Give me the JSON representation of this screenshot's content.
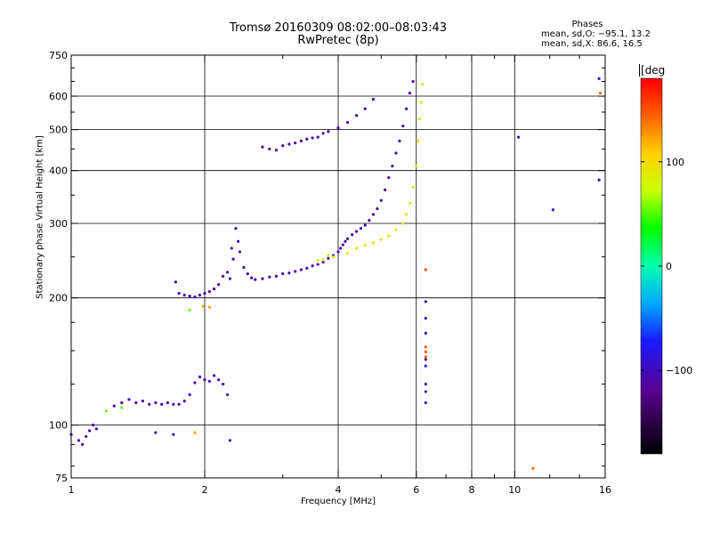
{
  "title": "Tromsø 20160309 08:02:00–08:03:43",
  "subtitle": "RwPretec (8p)",
  "phase_info": {
    "header": "Phases",
    "o_line": "mean, sd,O: −95.1, 13.2",
    "x_line": "mean, sd,X:  86.6, 16.5"
  },
  "colorbar": {
    "unit": "[deg",
    "range": [
      -180,
      180
    ],
    "ticks": [
      {
        "value": 100,
        "label": "100"
      },
      {
        "value": 0,
        "label": "0"
      },
      {
        "value": -100,
        "label": "−100"
      }
    ]
  },
  "chart_data": {
    "type": "scatter",
    "xlabel": "Frequency [MHz]",
    "ylabel": "Stationary phase Virtual Height [km]",
    "x_scale": "log",
    "y_scale": "log",
    "xlim": [
      1,
      16
    ],
    "ylim": [
      75,
      750
    ],
    "x_ticks": [
      {
        "value": 1,
        "label": "1"
      },
      {
        "value": 2,
        "label": "2"
      },
      {
        "value": 4,
        "label": "4"
      },
      {
        "value": 6,
        "label": "6"
      },
      {
        "value": 8,
        "label": "8"
      },
      {
        "value": 10,
        "label": "10"
      },
      {
        "value": 16,
        "label": "16"
      }
    ],
    "y_ticks": [
      {
        "value": 75,
        "label": "75"
      },
      {
        "value": 100,
        "label": "100"
      },
      {
        "value": 200,
        "label": "200"
      },
      {
        "value": 300,
        "label": "300"
      },
      {
        "value": 400,
        "label": "400"
      },
      {
        "value": 500,
        "label": "500"
      },
      {
        "value": 600,
        "label": "600"
      },
      {
        "value": 750,
        "label": "750"
      }
    ],
    "grid_x": [
      2,
      4,
      6,
      8,
      10
    ],
    "grid_y": [
      100,
      200,
      300,
      400,
      500,
      600
    ],
    "traces": [
      {
        "phase": -110,
        "points": [
          [
            1.0,
            95
          ],
          [
            1.04,
            92
          ],
          [
            1.06,
            90
          ],
          [
            1.08,
            94
          ],
          [
            1.1,
            97
          ],
          [
            1.12,
            100
          ],
          [
            1.14,
            98
          ]
        ]
      },
      {
        "phase": -105,
        "points": [
          [
            1.25,
            111
          ],
          [
            1.3,
            113
          ],
          [
            1.35,
            115
          ],
          [
            1.4,
            113
          ],
          [
            1.45,
            114
          ],
          [
            1.5,
            112
          ],
          [
            1.55,
            113
          ],
          [
            1.6,
            112
          ],
          [
            1.65,
            113
          ],
          [
            1.7,
            112
          ],
          [
            1.75,
            112
          ],
          [
            1.8,
            114
          ],
          [
            1.85,
            118
          ],
          [
            1.9,
            126
          ],
          [
            1.95,
            130
          ],
          [
            2.0,
            128
          ],
          [
            2.05,
            127
          ],
          [
            2.1,
            131
          ],
          [
            2.15,
            128
          ],
          [
            2.2,
            125
          ],
          [
            2.25,
            118
          ]
        ]
      },
      {
        "phase": -110,
        "points": [
          [
            1.72,
            218
          ],
          [
            1.75,
            205
          ],
          [
            1.8,
            203
          ],
          [
            1.85,
            202
          ],
          [
            1.9,
            201
          ],
          [
            1.95,
            203
          ],
          [
            2.0,
            205
          ],
          [
            2.05,
            207
          ],
          [
            2.1,
            210
          ],
          [
            2.15,
            215
          ],
          [
            2.2,
            225
          ],
          [
            2.25,
            230
          ]
        ]
      },
      {
        "phase": -108,
        "points": [
          [
            2.28,
            222
          ],
          [
            2.3,
            262
          ],
          [
            2.32,
            247
          ],
          [
            2.35,
            292
          ],
          [
            2.38,
            272
          ],
          [
            2.4,
            257
          ],
          [
            2.45,
            236
          ],
          [
            2.5,
            228
          ],
          [
            2.55,
            223
          ],
          [
            2.6,
            221
          ],
          [
            2.7,
            222
          ],
          [
            2.8,
            224
          ],
          [
            2.9,
            225
          ],
          [
            3.0,
            228
          ],
          [
            3.1,
            229
          ],
          [
            3.2,
            231
          ],
          [
            3.3,
            233
          ],
          [
            3.4,
            235
          ],
          [
            3.5,
            238
          ],
          [
            3.6,
            240
          ],
          [
            3.7,
            243
          ],
          [
            3.8,
            248
          ],
          [
            3.9,
            252
          ],
          [
            4.0,
            257
          ],
          [
            4.05,
            262
          ],
          [
            4.1,
            267
          ],
          [
            4.15,
            272
          ],
          [
            4.2,
            276
          ],
          [
            4.3,
            282
          ],
          [
            4.4,
            287
          ],
          [
            4.5,
            292
          ],
          [
            4.6,
            297
          ],
          [
            4.7,
            305
          ],
          [
            4.8,
            315
          ],
          [
            4.9,
            325
          ],
          [
            5.0,
            340
          ],
          [
            5.1,
            360
          ],
          [
            5.2,
            385
          ],
          [
            5.3,
            410
          ],
          [
            5.4,
            440
          ],
          [
            5.5,
            470
          ],
          [
            5.6,
            510
          ],
          [
            5.7,
            560
          ],
          [
            5.8,
            610
          ],
          [
            5.9,
            650
          ]
        ]
      },
      {
        "phase": -112,
        "points": [
          [
            2.7,
            455
          ],
          [
            2.8,
            450
          ],
          [
            2.9,
            447
          ],
          [
            3.0,
            458
          ],
          [
            3.1,
            462
          ],
          [
            3.2,
            465
          ],
          [
            3.3,
            470
          ],
          [
            3.4,
            475
          ],
          [
            3.5,
            478
          ],
          [
            3.6,
            480
          ],
          [
            3.7,
            490
          ],
          [
            3.8,
            495
          ],
          [
            4.0,
            505
          ],
          [
            4.2,
            520
          ],
          [
            4.4,
            540
          ],
          [
            4.6,
            560
          ],
          [
            4.8,
            590
          ]
        ]
      },
      {
        "phase": 95,
        "points": [
          [
            3.6,
            245
          ],
          [
            3.7,
            246
          ],
          [
            3.8,
            252
          ],
          [
            3.9,
            250
          ],
          [
            4.2,
            255
          ],
          [
            4.4,
            262
          ],
          [
            4.6,
            266
          ],
          [
            4.8,
            270
          ],
          [
            5.0,
            275
          ],
          [
            5.2,
            280
          ],
          [
            5.4,
            290
          ],
          [
            5.6,
            300
          ],
          [
            5.7,
            315
          ],
          [
            5.8,
            335
          ],
          [
            5.9,
            365
          ],
          [
            6.0,
            410
          ],
          [
            6.05,
            470
          ],
          [
            6.1,
            530
          ],
          [
            6.15,
            580
          ],
          [
            6.2,
            640
          ]
        ]
      },
      {
        "phase": 55,
        "points": [
          [
            1.2,
            108
          ],
          [
            1.3,
            110
          ],
          [
            1.85,
            187
          ]
        ]
      },
      {
        "phase": 120,
        "points": [
          [
            1.9,
            96
          ],
          [
            1.98,
            191
          ],
          [
            2.05,
            190
          ]
        ]
      },
      {
        "phase": -90,
        "points": [
          [
            6.3,
            196
          ],
          [
            6.3,
            179
          ],
          [
            6.3,
            165
          ],
          [
            6.3,
            143
          ],
          [
            6.3,
            138
          ],
          [
            6.3,
            125
          ],
          [
            6.3,
            120
          ],
          [
            6.3,
            113
          ]
        ]
      },
      {
        "phase": 150,
        "points": [
          [
            6.3,
            233
          ],
          [
            6.3,
            153
          ],
          [
            6.3,
            149
          ],
          [
            6.3,
            145
          ]
        ]
      },
      {
        "phase": -95,
        "points": [
          [
            2.28,
            92
          ],
          [
            1.55,
            96
          ],
          [
            1.7,
            95
          ],
          [
            10.2,
            480
          ],
          [
            12.2,
            323
          ],
          [
            15.5,
            380
          ],
          [
            15.5,
            660
          ]
        ]
      },
      {
        "phase": 140,
        "points": [
          [
            11.0,
            79
          ],
          [
            15.6,
            610
          ]
        ]
      }
    ]
  }
}
